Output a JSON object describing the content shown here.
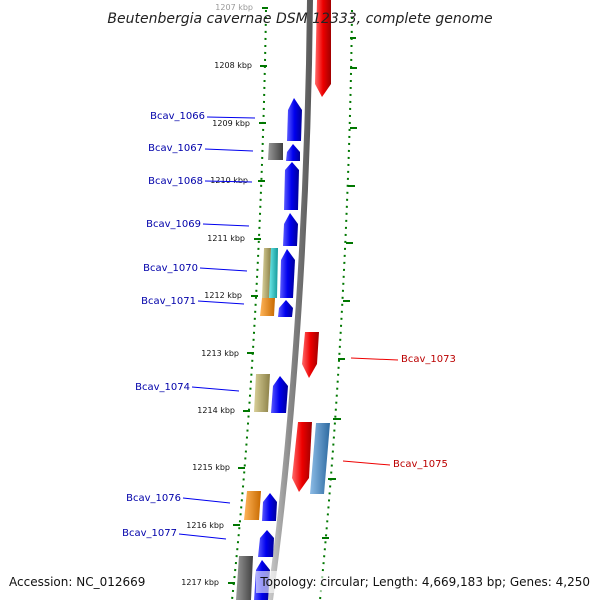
{
  "title": "Beutenbergia cavernae DSM 12333, complete genome",
  "accession": "Accession: NC_012669",
  "topology": "Topology: circular; Length: 4,669,183 bp; Genes: 4,250",
  "ticks": [
    "1207 kbp",
    "1208 kbp",
    "1209 kbp",
    "1210 kbp",
    "1211 kbp",
    "1212 kbp",
    "1213 kbp",
    "1214 kbp",
    "1215 kbp",
    "1216 kbp",
    "1217 kbp"
  ],
  "genes": [
    {
      "label": "Bcav_1066",
      "strand": "forward",
      "color": "#0000ee"
    },
    {
      "label": "Bcav_1067",
      "strand": "forward",
      "color": "#0000ee"
    },
    {
      "label": "Bcav_1068",
      "strand": "forward",
      "color": "#0000ee"
    },
    {
      "label": "Bcav_1069",
      "strand": "forward",
      "color": "#0000ee"
    },
    {
      "label": "Bcav_1070",
      "strand": "forward",
      "color": "#0000ee"
    },
    {
      "label": "Bcav_1071",
      "strand": "forward",
      "color": "#0000ee"
    },
    {
      "label": "Bcav_1073",
      "strand": "reverse",
      "color": "#ee0000"
    },
    {
      "label": "Bcav_1074",
      "strand": "forward",
      "color": "#0000ee"
    },
    {
      "label": "Bcav_1075",
      "strand": "reverse",
      "color": "#ee0000"
    },
    {
      "label": "Bcav_1076",
      "strand": "forward",
      "color": "#0000ee"
    },
    {
      "label": "Bcav_1077",
      "strand": "forward",
      "color": "#0000ee"
    }
  ],
  "colors": {
    "forward_gene": "#0000ee",
    "reverse_gene": "#ee0000",
    "backbone": "#909090",
    "gc_dots": "#007700",
    "cog_gray": "#606060",
    "cog_khaki": "#b5a96a",
    "cog_cyan": "#22c8c8",
    "cog_orange": "#f08a10",
    "cog_steelblue": "#4a8ec8"
  }
}
